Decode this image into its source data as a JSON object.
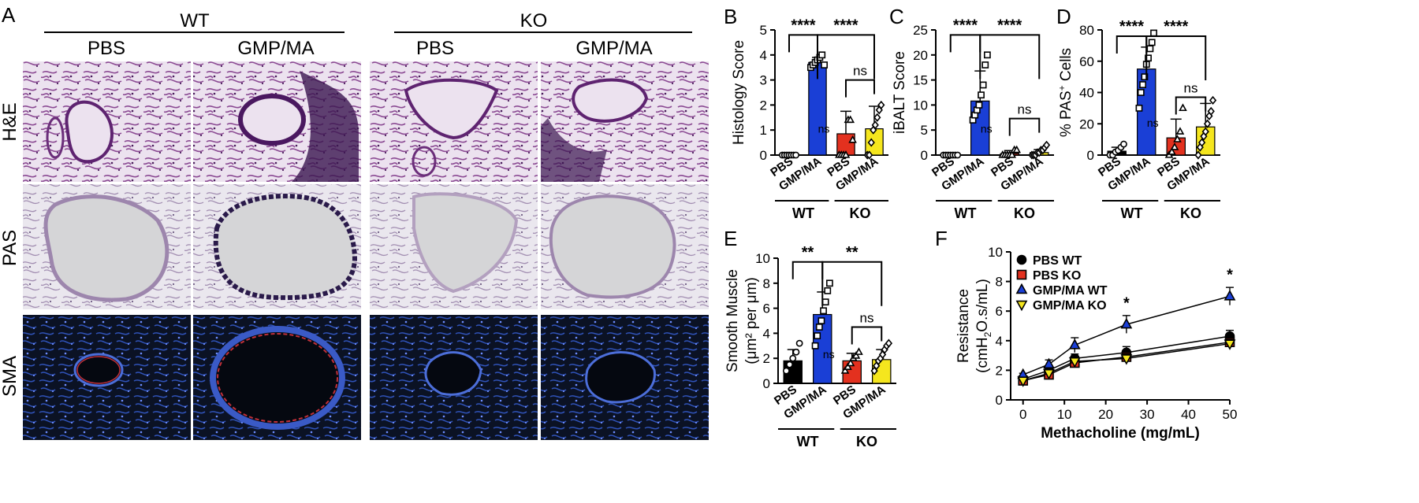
{
  "panel_letters": {
    "A": "A",
    "B": "B",
    "C": "C",
    "D": "D",
    "E": "E",
    "F": "F"
  },
  "micrograph": {
    "group_labels": [
      "WT",
      "KO"
    ],
    "column_labels": [
      "PBS",
      "GMP/MA",
      "PBS",
      "GMP/MA"
    ],
    "row_labels": [
      "H&E",
      "PAS",
      "SMA"
    ],
    "colors": {
      "he_bg": "#ece2ef",
      "he_tissue": "#7d3a86",
      "he_dense": "#3b1650",
      "pas_bg": "#e8e6ec",
      "pas_tissue": "#a995b5",
      "pas_dark": "#2a1a4a",
      "sma_bg": "#0a1020",
      "sma_tissue": "#2d4fb0",
      "sma_red": "#c0303a"
    }
  },
  "categories": [
    "PBS",
    "GMP/MA",
    "PBS",
    "GMP/MA"
  ],
  "group_labels": [
    "WT",
    "KO"
  ],
  "bar_colors": [
    "#000000",
    "#1a3fd6",
    "#e3311f",
    "#f5e61e"
  ],
  "chart_data": [
    {
      "panel": "B",
      "type": "bar",
      "ylabel": "Histology Score",
      "ylim": [
        0,
        5
      ],
      "yticks": [
        0,
        1,
        2,
        3,
        4,
        5
      ],
      "categories": [
        "PBS",
        "GMP/MA",
        "PBS",
        "GMP/MA"
      ],
      "values": [
        0,
        3.7,
        0.85,
        1.05
      ],
      "errors": [
        0,
        0.2,
        0.9,
        0.9
      ],
      "points": [
        [
          0,
          0,
          0,
          0,
          0,
          0,
          0
        ],
        [
          3.5,
          3.6,
          3.7,
          3.8,
          3.9,
          4.0,
          3.6
        ],
        [
          0,
          0,
          0,
          0,
          1.4,
          1.4,
          0.6
        ],
        [
          0,
          0,
          0.5,
          1,
          1.2,
          1.5,
          1.8,
          2.0
        ]
      ],
      "annotations": [
        {
          "from": 0,
          "to": 1,
          "label": "****",
          "y": 4.8
        },
        {
          "from": 1,
          "to": 3,
          "label": "****",
          "y": 4.8
        },
        {
          "from": 2,
          "to": 3,
          "label": "ns",
          "y": 3.0
        },
        {
          "at": 1,
          "label": "ns",
          "y": 0.9
        }
      ]
    },
    {
      "panel": "C",
      "type": "bar",
      "ylabel": "iBALT Score",
      "ylim": [
        0,
        25
      ],
      "yticks": [
        0,
        5,
        10,
        15,
        20,
        25
      ],
      "categories": [
        "PBS",
        "GMP/MA",
        "PBS",
        "GMP/MA"
      ],
      "values": [
        0,
        10.8,
        0.3,
        0.5
      ],
      "errors": [
        0,
        6,
        0.6,
        0.6
      ],
      "points": [
        [
          0,
          0,
          0,
          0,
          0,
          0,
          0
        ],
        [
          7,
          8,
          9,
          10,
          12,
          14,
          18,
          20
        ],
        [
          0,
          0,
          0,
          0,
          0,
          1,
          1
        ],
        [
          0,
          0,
          0,
          0.5,
          0.5,
          1,
          1,
          1.5,
          2
        ]
      ],
      "annotations": [
        {
          "from": 0,
          "to": 1,
          "label": "****",
          "y": 24
        },
        {
          "from": 1,
          "to": 3,
          "label": "****",
          "y": 24
        },
        {
          "from": 2,
          "to": 3,
          "label": "ns",
          "y": 7.3
        },
        {
          "at": 1,
          "label": "ns",
          "y": 4.5
        }
      ]
    },
    {
      "panel": "D",
      "type": "bar",
      "ylabel": "% PAS",
      "ylabel_sup": "+",
      "ylabel_tail": " Cells",
      "ylim": [
        0,
        80
      ],
      "yticks": [
        0,
        20,
        40,
        60,
        80
      ],
      "categories": [
        "PBS",
        "GMP/MA",
        "PBS",
        "GMP/MA"
      ],
      "values": [
        2.5,
        55,
        11,
        18
      ],
      "errors": [
        2.5,
        14,
        12,
        15
      ],
      "points": [
        [
          0,
          0,
          2,
          3,
          5,
          7
        ],
        [
          30,
          40,
          45,
          50,
          58,
          62,
          68,
          72,
          78
        ],
        [
          0,
          2,
          5,
          10,
          15,
          30
        ],
        [
          0,
          5,
          8,
          12,
          15,
          20,
          25,
          28,
          35
        ]
      ],
      "annotations": [
        {
          "from": 0,
          "to": 1,
          "label": "****",
          "y": 76
        },
        {
          "from": 1,
          "to": 3,
          "label": "****",
          "y": 76
        },
        {
          "from": 2,
          "to": 3,
          "label": "ns",
          "y": 37
        },
        {
          "at": 1,
          "label": "ns",
          "y": 18
        }
      ]
    },
    {
      "panel": "E",
      "type": "bar",
      "ylabel": "Smooth Muscle",
      "ylabel2": "(μm² per μm)",
      "ylim": [
        0,
        10
      ],
      "yticks": [
        0,
        2,
        4,
        6,
        8,
        10
      ],
      "categories": [
        "PBS",
        "GMP/MA",
        "PBS",
        "GMP/MA"
      ],
      "values": [
        1.8,
        5.5,
        1.8,
        1.9
      ],
      "errors": [
        0.9,
        1.8,
        0.6,
        0.8
      ],
      "points": [
        [
          1,
          1.5,
          2,
          2.5,
          3.2
        ],
        [
          3,
          3.8,
          4.5,
          5,
          5.8,
          6.5,
          7.4,
          8
        ],
        [
          1,
          1.3,
          1.6,
          2,
          2.2,
          2.5
        ],
        [
          1,
          1.4,
          1.8,
          2,
          2.3,
          2.7,
          3,
          3.2
        ]
      ],
      "annotations": [
        {
          "from": 0,
          "to": 1,
          "label": "**",
          "y": 9.7
        },
        {
          "from": 1,
          "to": 3,
          "label": "**",
          "y": 9.7
        },
        {
          "from": 2,
          "to": 3,
          "label": "ns",
          "y": 4.5
        },
        {
          "at": 1,
          "label": "ns",
          "y": 2
        }
      ]
    },
    {
      "panel": "F",
      "type": "line",
      "xlabel": "Methacholine (mg/mL)",
      "ylabel": "Resistance",
      "ylabel2_pre": "(cmH",
      "ylabel2_sub": "2",
      "ylabel2_post": "O.s/mL)",
      "xlim": [
        -3,
        50
      ],
      "xticks": [
        0,
        10,
        20,
        30,
        40,
        50
      ],
      "ylim": [
        0,
        10
      ],
      "yticks": [
        0,
        2,
        4,
        6,
        8,
        10
      ],
      "x": [
        0,
        6.25,
        12.5,
        25,
        50
      ],
      "series": [
        {
          "name": "PBS WT",
          "values": [
            1.4,
            2.0,
            2.8,
            3.2,
            4.3
          ],
          "errors": [
            0.1,
            0.2,
            0.3,
            0.4,
            0.4
          ],
          "color": "#000000",
          "marker": "circle"
        },
        {
          "name": "PBS KO",
          "values": [
            1.3,
            1.7,
            2.5,
            2.9,
            3.9
          ],
          "errors": [
            0.1,
            0.2,
            0.2,
            0.3,
            0.3
          ],
          "color": "#e3311f",
          "marker": "square"
        },
        {
          "name": "GMP/MA WT",
          "values": [
            1.7,
            2.4,
            3.7,
            5.1,
            7.0
          ],
          "errors": [
            0.1,
            0.3,
            0.5,
            0.6,
            0.6
          ],
          "color": "#1a3fd6",
          "marker": "triangle"
        },
        {
          "name": "GMP/MA KO",
          "values": [
            1.3,
            1.8,
            2.6,
            2.8,
            3.8
          ],
          "errors": [
            0.1,
            0.2,
            0.2,
            0.3,
            0.3
          ],
          "color": "#f5e61e",
          "marker": "triangle-down"
        }
      ],
      "annotations": [
        {
          "x": 25,
          "label": "*",
          "y": 6.2
        },
        {
          "x": 50,
          "label": "*",
          "y": 8.1
        }
      ]
    }
  ]
}
